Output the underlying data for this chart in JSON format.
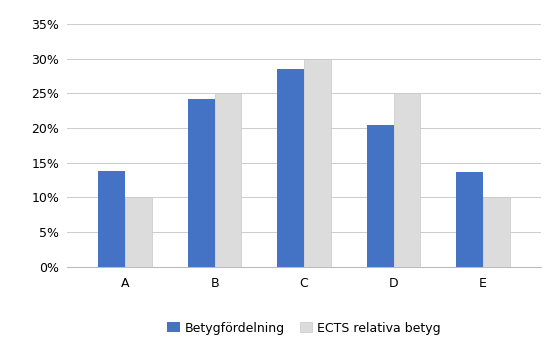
{
  "categories": [
    "A",
    "B",
    "C",
    "D",
    "E"
  ],
  "series1_values": [
    0.138,
    0.242,
    0.285,
    0.205,
    0.136
  ],
  "series2_values": [
    0.1,
    0.25,
    0.3,
    0.25,
    0.1
  ],
  "series1_label": "Betygfördelning",
  "series2_label": "ECTS relativa betyg",
  "series1_color": "#4472C4",
  "series2_color": "#DCDCDC",
  "ylim": [
    0,
    0.37
  ],
  "yticks": [
    0.0,
    0.05,
    0.1,
    0.15,
    0.2,
    0.25,
    0.3,
    0.35
  ],
  "bar_width": 0.3,
  "background_color": "#FFFFFF",
  "grid_color": "#CCCCCC",
  "tick_fontsize": 9,
  "legend_fontsize": 9
}
